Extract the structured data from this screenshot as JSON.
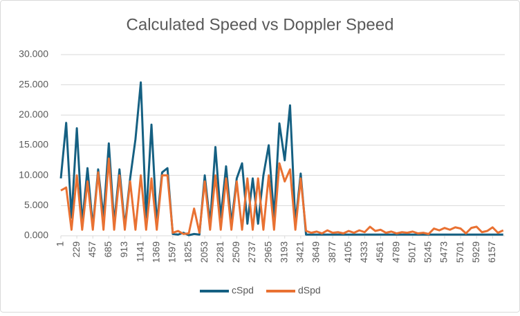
{
  "chart_data": {
    "type": "line",
    "title": "Calculated Speed vs Doppler Speed",
    "x": [
      1,
      77,
      153,
      229,
      305,
      381,
      457,
      533,
      609,
      685,
      761,
      837,
      913,
      989,
      1065,
      1141,
      1217,
      1293,
      1369,
      1445,
      1521,
      1597,
      1673,
      1749,
      1825,
      1901,
      1977,
      2053,
      2129,
      2205,
      2281,
      2357,
      2433,
      2509,
      2585,
      2661,
      2737,
      2813,
      2889,
      2965,
      3041,
      3117,
      3193,
      3269,
      3345,
      3421,
      3497,
      3573,
      3649,
      3725,
      3801,
      3877,
      3953,
      4029,
      4105,
      4181,
      4257,
      4333,
      4409,
      4485,
      4561,
      4637,
      4713,
      4789,
      4865,
      4941,
      5017,
      5093,
      5169,
      5245,
      5321,
      5397,
      5473,
      5549,
      5625,
      5701,
      5777,
      5853,
      5929,
      6005,
      6081,
      6157,
      6233,
      6309
    ],
    "series": [
      {
        "name": "cSpd",
        "color": "#156082",
        "values": [
          9.5,
          18.7,
          3,
          17.8,
          2,
          11.2,
          1.5,
          11,
          3,
          15.3,
          2,
          11,
          1.5,
          9.5,
          16,
          25.4,
          3,
          18.4,
          2,
          10.5,
          11.2,
          0.3,
          0.2,
          0.5,
          0.1,
          0.3,
          0.2,
          10,
          2,
          14.7,
          3,
          11.5,
          2,
          9.5,
          12,
          2,
          9.5,
          2,
          10,
          15,
          3,
          18.6,
          12.5,
          21.6,
          2,
          10.3,
          0.2,
          0.2,
          0.2,
          0.2,
          0.2,
          0.2,
          0.2,
          0.2,
          0.2,
          0.2,
          0.2,
          0.2,
          0.2,
          0.2,
          0.2,
          0.2,
          0.2,
          0.2,
          0.2,
          0.2,
          0.2,
          0.2,
          0.2,
          0.2,
          0.2,
          0.2,
          0.2,
          0.2,
          0.2,
          0.2,
          0.2,
          0.2,
          0.2,
          0.2,
          0.2,
          0.2,
          0.2,
          0.2
        ]
      },
      {
        "name": "dSpd",
        "color": "#e97132",
        "values": [
          7.5,
          8,
          1,
          10,
          1,
          9,
          1,
          10.5,
          1,
          12.8,
          1,
          10,
          1,
          9,
          1,
          10,
          1,
          9.5,
          1,
          10,
          10,
          0.5,
          0.8,
          0.3,
          0.4,
          4.5,
          0.5,
          9,
          1,
          10,
          1,
          9.5,
          1,
          9,
          1,
          9.5,
          1,
          9.5,
          1,
          10,
          1,
          12,
          9,
          11,
          1,
          9.5,
          0.8,
          0.5,
          0.7,
          0.4,
          0.9,
          0.5,
          0.6,
          0.4,
          0.8,
          0.5,
          0.9,
          0.6,
          1.5,
          0.8,
          1.0,
          0.5,
          0.7,
          0.4,
          0.6,
          0.5,
          0.7,
          0.4,
          0.5,
          0.3,
          1.2,
          0.9,
          1.3,
          1.0,
          1.4,
          1.2,
          0.4,
          1.3,
          1.5,
          0.6,
          0.8,
          1.4,
          0.5,
          0.9
        ]
      }
    ],
    "xlim": [
      1,
      6331
    ],
    "xticks": [
      1,
      229,
      457,
      685,
      913,
      1141,
      1369,
      1597,
      1825,
      2053,
      2281,
      2509,
      2737,
      2965,
      3193,
      3421,
      3649,
      3877,
      4105,
      4333,
      4561,
      4789,
      5017,
      5245,
      5473,
      5701,
      5929,
      6157
    ],
    "ylim": [
      0,
      30
    ],
    "yticks": [
      {
        "value": 0,
        "label": "0.000"
      },
      {
        "value": 5,
        "label": "5.000"
      },
      {
        "value": 10,
        "label": "10.000"
      },
      {
        "value": 15,
        "label": "15.000"
      },
      {
        "value": 20,
        "label": "20.000"
      },
      {
        "value": 25,
        "label": "25.000"
      },
      {
        "value": 30,
        "label": "30.000"
      }
    ],
    "grid": true
  }
}
